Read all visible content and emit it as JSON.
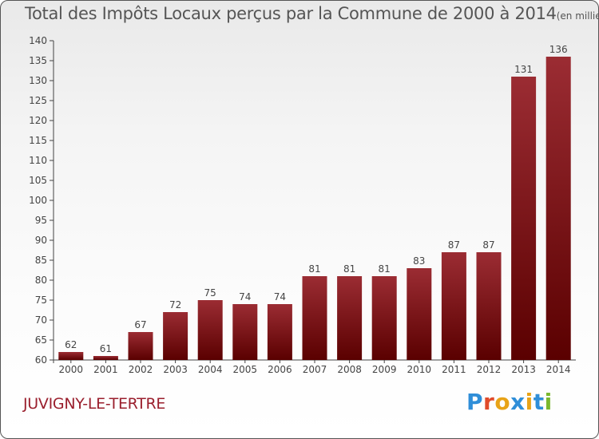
{
  "title": "Total des Impôts Locaux perçus par la Commune de 2000 à 2014",
  "unit": "(en milliers d'€)",
  "commune": "JUVIGNY-LE-TERTRE",
  "logo": {
    "letters": [
      "P",
      "r",
      "o",
      "x",
      "i",
      "t",
      "i"
    ],
    "colors": [
      "#2f8ed8",
      "#e04b2a",
      "#e8a317",
      "#2f8ed8",
      "#e8a317",
      "#2f8ed8",
      "#7ab82f"
    ]
  },
  "colors": {
    "bar_top": "#9b2c33",
    "bar_bottom": "#5a0000",
    "axis": "#444444",
    "text": "#444444"
  },
  "chart_data": {
    "type": "bar",
    "title": "Total des Impôts Locaux perçus par la Commune de 2000 à 2014",
    "xlabel": "",
    "ylabel": "",
    "categories": [
      "2000",
      "2001",
      "2002",
      "2003",
      "2004",
      "2005",
      "2006",
      "2007",
      "2008",
      "2009",
      "2010",
      "2011",
      "2012",
      "2013",
      "2014"
    ],
    "values": [
      62,
      61,
      67,
      72,
      75,
      74,
      74,
      81,
      81,
      81,
      83,
      87,
      87,
      131,
      136
    ],
    "ylim": [
      60,
      140
    ],
    "yticks": [
      60,
      65,
      70,
      75,
      80,
      85,
      90,
      95,
      100,
      105,
      110,
      115,
      120,
      125,
      130,
      135,
      140
    ],
    "grid": false
  }
}
